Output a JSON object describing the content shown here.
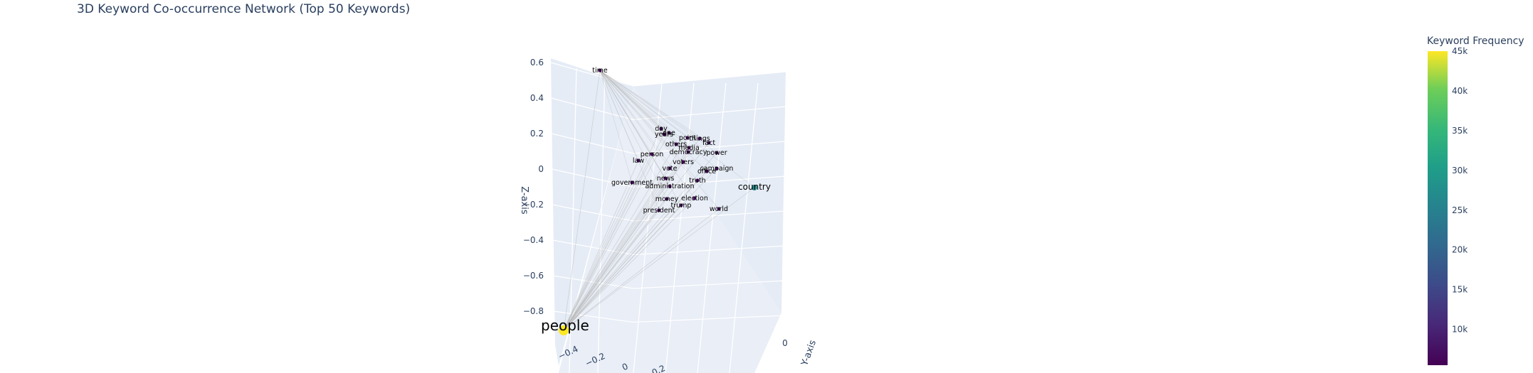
{
  "chart_data": {
    "type": "scatter",
    "subtype": "3d-network",
    "title": "3D Keyword Co-occurrence Network (Top 50 Keywords)",
    "xlabel": "",
    "ylabel": "Y-axis",
    "zlabel": "Z-axis",
    "x_ticks": [
      "−0.4",
      "−0.2",
      "0",
      "0.2"
    ],
    "y_ticks": [
      "0"
    ],
    "z_ticks": [
      "0.6",
      "0.4",
      "0.2",
      "0",
      "−0.2",
      "−0.4",
      "−0.6",
      "−0.8"
    ],
    "grid": true,
    "colorscale": "Viridis",
    "colorbar": {
      "title": "Keyword Frequency",
      "range": [
        5500,
        45000
      ],
      "tick_values": [
        45000,
        40000,
        35000,
        30000,
        25000,
        20000,
        15000,
        10000
      ],
      "tick_labels": [
        "45k",
        "40k",
        "35k",
        "30k",
        "25k",
        "20k",
        "15k",
        "10k"
      ]
    },
    "hub_keyword": "people",
    "nodes": [
      {
        "label": "time",
        "freq": 7000
      },
      {
        "label": "day",
        "freq": 6000
      },
      {
        "label": "one",
        "freq": 6500
      },
      {
        "label": "years",
        "freq": 6200
      },
      {
        "label": "point",
        "freq": 6000
      },
      {
        "label": "things",
        "freq": 6000
      },
      {
        "label": "fact",
        "freq": 6000
      },
      {
        "label": "others",
        "freq": 6000
      },
      {
        "label": "media",
        "freq": 6000
      },
      {
        "label": "democracy",
        "freq": 6000
      },
      {
        "label": "power",
        "freq": 6200
      },
      {
        "label": "person",
        "freq": 6000
      },
      {
        "label": "law",
        "freq": 6100
      },
      {
        "label": "campaign",
        "freq": 6000
      },
      {
        "label": "office",
        "freq": 6200
      },
      {
        "label": "vote",
        "freq": 6000
      },
      {
        "label": "voters",
        "freq": 6000
      },
      {
        "label": "news",
        "freq": 6100
      },
      {
        "label": "truth",
        "freq": 6000
      },
      {
        "label": "government",
        "freq": 6300
      },
      {
        "label": "administration",
        "freq": 6200
      },
      {
        "label": "money",
        "freq": 6100
      },
      {
        "label": "election",
        "freq": 6300
      },
      {
        "label": "trump",
        "freq": 6800
      },
      {
        "label": "president",
        "freq": 6500
      },
      {
        "label": "world",
        "freq": 6400
      },
      {
        "label": "country",
        "freq": 27000
      },
      {
        "label": "people",
        "freq": 45000
      }
    ]
  }
}
